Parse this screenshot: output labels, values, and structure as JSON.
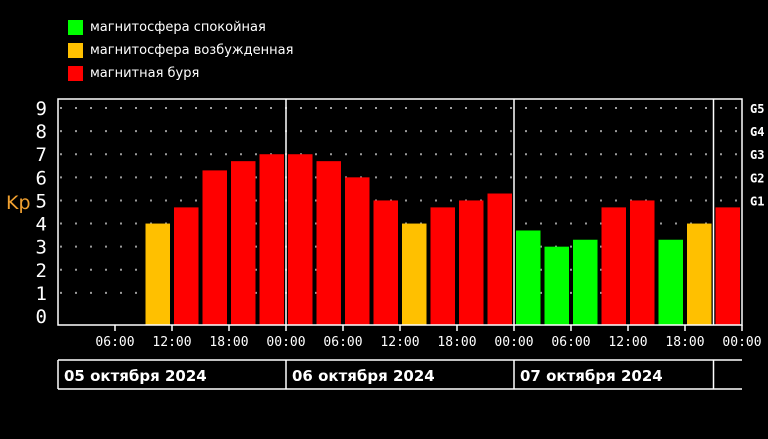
{
  "legend": [
    {
      "label": "магнитосфера спокойная",
      "color": "#00ff00"
    },
    {
      "label": "магнитосфера возбужденная",
      "color": "#ffc000"
    },
    {
      "label": "магнитная буря",
      "color": "#ff0000"
    }
  ],
  "chart_data": {
    "type": "bar",
    "ylabel": "Kp",
    "ylim": [
      0,
      9
    ],
    "yticks": [
      "0",
      "1",
      "2",
      "3",
      "4",
      "5",
      "6",
      "7",
      "8",
      "9"
    ],
    "right_labels": [
      {
        "label": "G1",
        "value": 5
      },
      {
        "label": "G2",
        "value": 6
      },
      {
        "label": "G3",
        "value": 7
      },
      {
        "label": "G4",
        "value": 8
      },
      {
        "label": "G5",
        "value": 9
      }
    ],
    "x_tick_labels": [
      "06:00",
      "12:00",
      "18:00",
      "00:00",
      "06:00",
      "12:00",
      "18:00",
      "00:00",
      "06:00",
      "12:00",
      "18:00",
      "00:00"
    ],
    "dates": [
      "05 октября 2024",
      "06 октября 2024",
      "07 октября 2024"
    ],
    "bars": [
      {
        "slot": 4,
        "value": 4.0,
        "color": "#ffc000"
      },
      {
        "slot": 5,
        "value": 4.7,
        "color": "#ff0000"
      },
      {
        "slot": 6,
        "value": 6.3,
        "color": "#ff0000"
      },
      {
        "slot": 7,
        "value": 6.7,
        "color": "#ff0000"
      },
      {
        "slot": 8,
        "value": 7.0,
        "color": "#ff0000"
      },
      {
        "slot": 9,
        "value": 7.0,
        "color": "#ff0000"
      },
      {
        "slot": 10,
        "value": 6.7,
        "color": "#ff0000"
      },
      {
        "slot": 11,
        "value": 6.0,
        "color": "#ff0000"
      },
      {
        "slot": 12,
        "value": 5.0,
        "color": "#ff0000"
      },
      {
        "slot": 13,
        "value": 4.0,
        "color": "#ffc000"
      },
      {
        "slot": 14,
        "value": 4.7,
        "color": "#ff0000"
      },
      {
        "slot": 15,
        "value": 5.0,
        "color": "#ff0000"
      },
      {
        "slot": 16,
        "value": 5.3,
        "color": "#ff0000"
      },
      {
        "slot": 17,
        "value": 3.7,
        "color": "#00ff00"
      },
      {
        "slot": 18,
        "value": 3.0,
        "color": "#00ff00"
      },
      {
        "slot": 19,
        "value": 3.3,
        "color": "#00ff00"
      },
      {
        "slot": 20,
        "value": 4.7,
        "color": "#ff0000"
      },
      {
        "slot": 21,
        "value": 5.0,
        "color": "#ff0000"
      },
      {
        "slot": 22,
        "value": 3.3,
        "color": "#00ff00"
      },
      {
        "slot": 23,
        "value": 4.0,
        "color": "#ffc000"
      },
      {
        "slot": 24,
        "value": 4.7,
        "color": "#ff0000"
      }
    ]
  }
}
